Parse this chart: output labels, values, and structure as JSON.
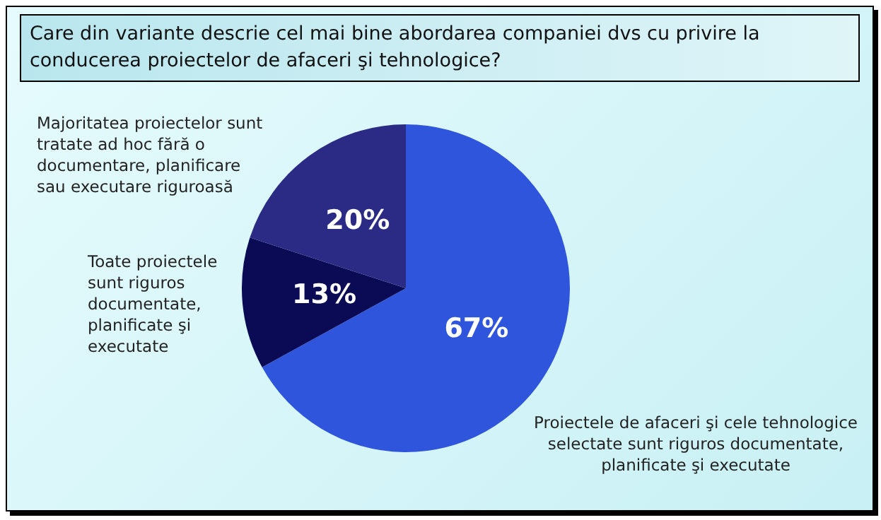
{
  "chart_data": {
    "type": "pie",
    "title": "Care din variante descrie cel mai bine abordarea companiei dvs cu privire la conducerea proiectelor de afaceri şi tehnologice?",
    "categories": [
      "Proiectele de afaceri şi cele tehnologice selectate sunt riguros documentate, planificate şi executate",
      "Toate proiectele sunt riguros documentate, planificate şi executate",
      "Majoritatea proiectelor sunt tratate ad hoc fără o documentare, planificare sau executare riguroasă"
    ],
    "values": [
      67,
      13,
      20
    ],
    "colors": [
      "#2f55dd",
      "#0b0b55",
      "#2b2b85"
    ],
    "value_labels": [
      "67%",
      "13%",
      "20%"
    ],
    "legend": false
  }
}
